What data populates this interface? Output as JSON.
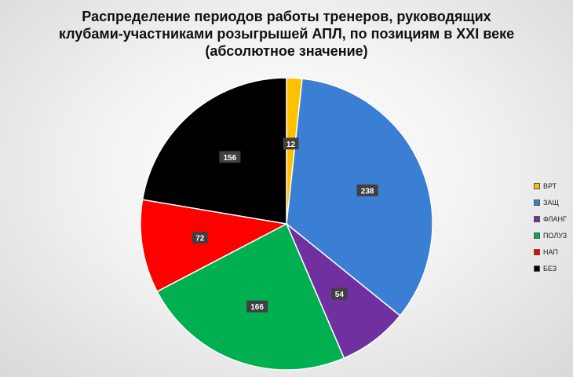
{
  "title_lines": [
    "Распределение периодов работы тренеров, руководящих",
    "клубами-участниками розыгрышей АПЛ, по позициям в XXI веке",
    "(абсолютное значение)"
  ],
  "chart_data": {
    "type": "pie",
    "title": "Распределение периодов работы тренеров, руководящих клубами-участниками розыгрышей АПЛ, по позициям в XXI веке (абсолютное значение)",
    "categories": [
      "ВРТ",
      "ЗАЩ",
      "ФЛАНГ",
      "ПОЛУЗ",
      "НАП",
      "БЕЗ"
    ],
    "values": [
      12,
      238,
      54,
      166,
      72,
      156
    ],
    "colors": [
      "#ffc000",
      "#3a7fd4",
      "#7030a0",
      "#00b050",
      "#ff0000",
      "#000000"
    ],
    "legend_position": "right",
    "data_labels": true
  }
}
